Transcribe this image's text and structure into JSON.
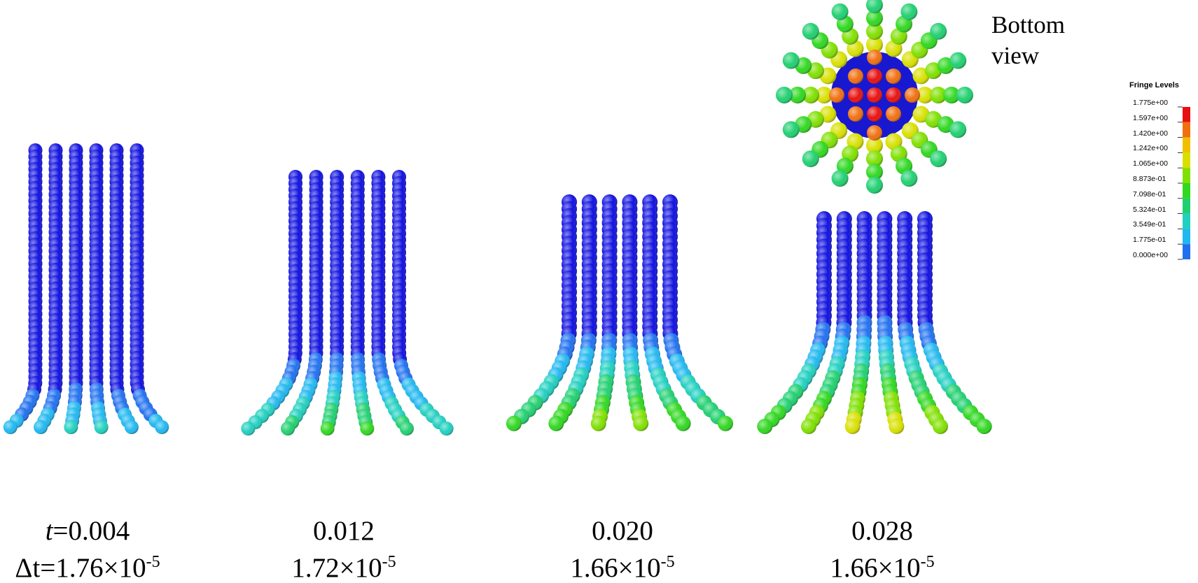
{
  "panels": [
    {
      "time_symbol": "t",
      "time": "=0.004",
      "dt_symbol": "Δt=",
      "dt": "1.76×10",
      "dt_exp": "-5"
    },
    {
      "time": "0.012",
      "dt": "1.72×10",
      "dt_exp": "-5"
    },
    {
      "time": "0.020",
      "dt": "1.66×10",
      "dt_exp": "-5"
    },
    {
      "time": "0.028",
      "dt": "1.66×10",
      "dt_exp": "-5"
    }
  ],
  "inset_label": [
    "Bottom",
    "view"
  ],
  "legend": {
    "title": "Fringe Levels",
    "levels": [
      "1.775e+00",
      "1.597e+00",
      "1.420e+00",
      "1.242e+00",
      "1.065e+00",
      "8.873e-01",
      "7.098e-01",
      "5.324e-01",
      "3.549e-01",
      "1.775e-01",
      "0.000e+00"
    ],
    "colors": [
      "#e81010",
      "#f07010",
      "#f0c000",
      "#d8e000",
      "#80e000",
      "#30d820",
      "#20d070",
      "#20d0c0",
      "#20b8f0",
      "#2070f0",
      "#1010e0"
    ]
  }
}
